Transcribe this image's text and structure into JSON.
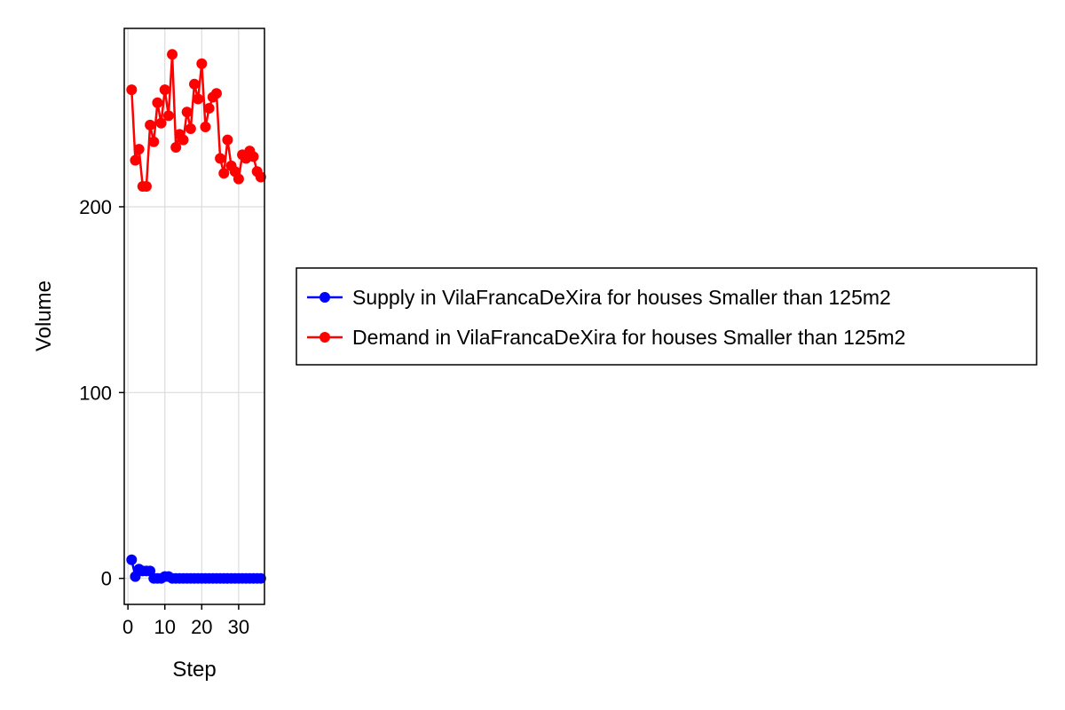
{
  "chart_data": {
    "type": "line",
    "xlabel": "Step",
    "ylabel": "Volume",
    "xlim": [
      -1,
      37
    ],
    "ylim": [
      -14,
      296
    ],
    "x_ticks": [
      0,
      10,
      20,
      30
    ],
    "y_ticks": [
      0,
      100,
      200
    ],
    "x_tick_labels": [
      "0",
      "10",
      "20",
      "30"
    ],
    "y_tick_labels": [
      "0",
      "100",
      "200"
    ],
    "grid": true,
    "legend_position": "right",
    "x": [
      1,
      2,
      3,
      4,
      5,
      6,
      7,
      8,
      9,
      10,
      11,
      12,
      13,
      14,
      15,
      16,
      17,
      18,
      19,
      20,
      21,
      22,
      23,
      24,
      25,
      26,
      27,
      28,
      29,
      30,
      31,
      32,
      33,
      34,
      35,
      36
    ],
    "series": [
      {
        "name": "Supply in VilaFrancaDeXira for houses Smaller than 125m2",
        "color": "#0000ff",
        "marker": "circle",
        "values": [
          10,
          1,
          5,
          4,
          4,
          4,
          0,
          0,
          0,
          1,
          1,
          0,
          0,
          0,
          0,
          0,
          0,
          0,
          0,
          0,
          0,
          0,
          0,
          0,
          0,
          0,
          0,
          0,
          0,
          0,
          0,
          0,
          0,
          0,
          0,
          0
        ]
      },
      {
        "name": "Demand in VilaFrancaDeXira for houses Smaller than 125m2",
        "color": "#ff0000",
        "marker": "circle",
        "values": [
          263,
          225,
          231,
          211,
          211,
          244,
          235,
          256,
          245,
          263,
          249,
          282,
          232,
          239,
          236,
          251,
          242,
          266,
          258,
          277,
          243,
          253,
          259,
          261,
          226,
          218,
          236,
          222,
          219,
          215,
          228,
          226,
          230,
          227,
          219,
          216
        ]
      }
    ]
  }
}
